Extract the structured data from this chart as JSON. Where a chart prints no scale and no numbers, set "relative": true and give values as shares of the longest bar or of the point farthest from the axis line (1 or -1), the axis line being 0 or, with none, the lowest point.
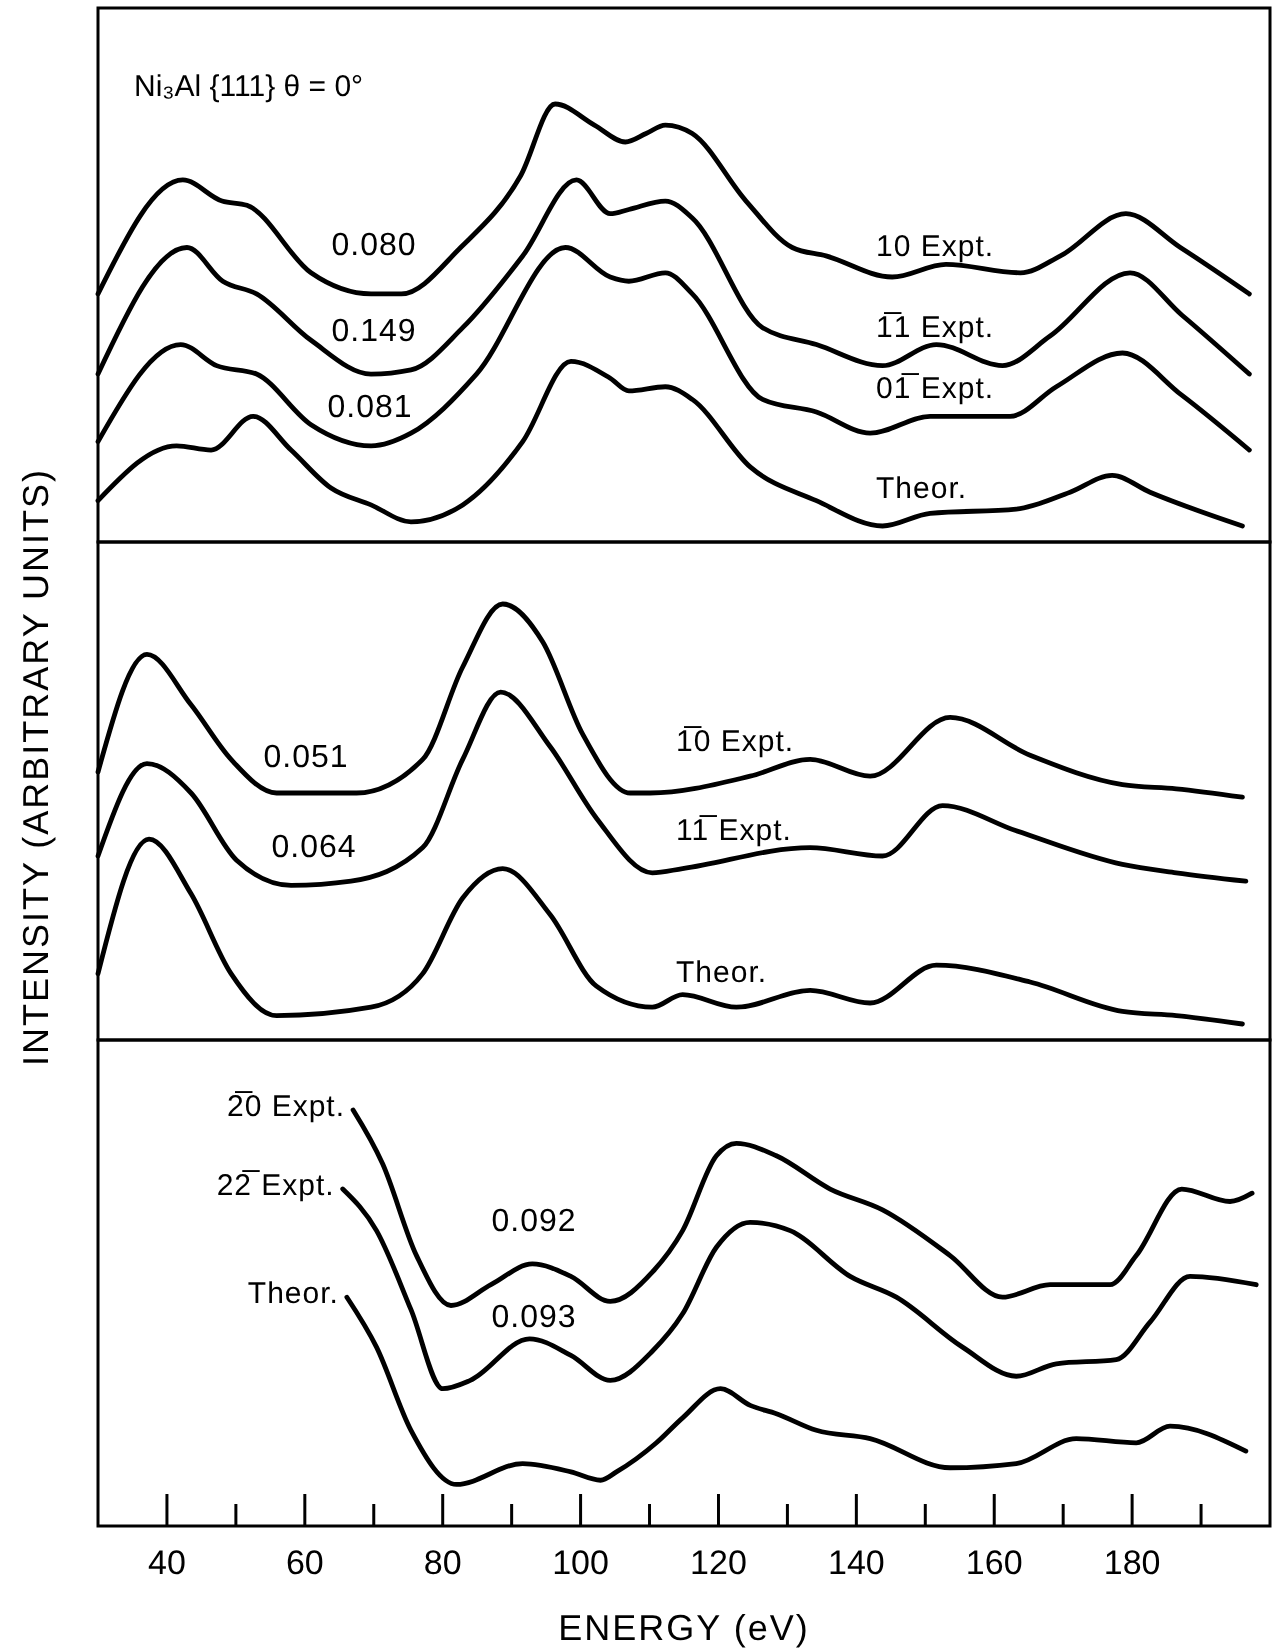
{
  "chart_data": [
    {
      "type": "line",
      "title": "Ni₃Al {111} θ = 0°",
      "relative": true,
      "xlim": [
        30,
        200
      ],
      "tick_labels": false,
      "annotations": [
        "0.080",
        "0.149",
        "0.081"
      ],
      "series": [
        {
          "name": "10 Expt.",
          "color": "#000000",
          "x": [
            30,
            42.3,
            48,
            51.6,
            60.9,
            69.6,
            74,
            82.6,
            91.3,
            96.3,
            102,
            106.5,
            109.5,
            112.3,
            116.2,
            124,
            130.7,
            135.6,
            145.2,
            153,
            163.8,
            169.6,
            179.1,
            187,
            197
          ],
          "values": [
            0.55,
            0.82,
            0.77,
            0.76,
            0.6,
            0.55,
            0.55,
            0.66,
            0.83,
            1.0,
            0.95,
            0.91,
            0.93,
            0.95,
            0.93,
            0.77,
            0.66,
            0.64,
            0.59,
            0.62,
            0.6,
            0.64,
            0.74,
            0.66,
            0.55
          ]
        },
        {
          "name": "1̅1 Expt.",
          "color": "#000000",
          "x": [
            30,
            42.9,
            48.1,
            53,
            60.9,
            69.6,
            75.4,
            82.9,
            91.6,
            99.4,
            104.3,
            107,
            112.3,
            116.2,
            126.4,
            134.2,
            143.8,
            151.6,
            161.2,
            168.1,
            179.7,
            187.2,
            197
          ],
          "values": [
            0.36,
            0.66,
            0.58,
            0.55,
            0.44,
            0.36,
            0.37,
            0.47,
            0.64,
            0.82,
            0.74,
            0.75,
            0.77,
            0.73,
            0.47,
            0.43,
            0.38,
            0.43,
            0.38,
            0.45,
            0.6,
            0.5,
            0.36
          ]
        },
        {
          "name": "01̅ Expt.",
          "color": "#000000",
          "x": [
            30,
            42,
            47.2,
            53,
            60.9,
            69.6,
            75.4,
            84.9,
            97.8,
            104.3,
            107,
            112.3,
            116.2,
            126.4,
            134.2,
            142,
            150.7,
            162.3,
            169,
            178.6,
            187.2,
            197
          ],
          "values": [
            0.2,
            0.43,
            0.38,
            0.36,
            0.24,
            0.19,
            0.22,
            0.36,
            0.66,
            0.59,
            0.58,
            0.6,
            0.55,
            0.3,
            0.27,
            0.22,
            0.26,
            0.26,
            0.33,
            0.41,
            0.31,
            0.18
          ]
        },
        {
          "name": "Theor.",
          "color": "#000000",
          "x": [
            30,
            41.4,
            46.4,
            52.5,
            58,
            63.8,
            69.6,
            75.4,
            82.9,
            91.6,
            98.6,
            104.3,
            107,
            112.3,
            116.2,
            124.6,
            134.2,
            143.8,
            150.7,
            163.2,
            171,
            177.1,
            182.6,
            196
          ],
          "values": [
            0.06,
            0.19,
            0.18,
            0.26,
            0.18,
            0.09,
            0.05,
            0.01,
            0.05,
            0.2,
            0.39,
            0.35,
            0.32,
            0.33,
            0.3,
            0.14,
            0.06,
            0,
            0.03,
            0.04,
            0.08,
            0.12,
            0.08,
            0.0
          ]
        }
      ]
    },
    {
      "type": "line",
      "ylabel": "INTENSITY (ARBITRARY UNITS)",
      "relative": true,
      "xlim": [
        30,
        200
      ],
      "tick_labels": false,
      "annotations": [
        "0.051",
        "0.064"
      ],
      "series": [
        {
          "name": "1̅0 Expt.",
          "color": "#000000",
          "x": [
            30,
            37.1,
            43.5,
            49.3,
            55.9,
            67.5,
            77.1,
            82.9,
            88.7,
            94.5,
            100.3,
            107.2,
            110.1,
            124.6,
            133.3,
            142,
            153.6,
            165.2,
            178.6,
            186.4,
            196
          ],
          "values": [
            0.6,
            0.88,
            0.76,
            0.63,
            0.55,
            0.55,
            0.63,
            0.85,
            1.0,
            0.91,
            0.69,
            0.55,
            0.55,
            0.59,
            0.63,
            0.59,
            0.73,
            0.64,
            0.57,
            0.56,
            0.54
          ]
        },
        {
          "name": "11̅ Expt.",
          "color": "#000000",
          "x": [
            30,
            37.1,
            43.5,
            50.1,
            58,
            66.7,
            77.1,
            82.9,
            88.4,
            95.6,
            102.3,
            110.4,
            114.8,
            133.3,
            143.8,
            152.5,
            163.2,
            178.6,
            186.4,
            196.5
          ],
          "values": [
            0.4,
            0.62,
            0.55,
            0.39,
            0.33,
            0.34,
            0.42,
            0.63,
            0.79,
            0.66,
            0.49,
            0.36,
            0.37,
            0.42,
            0.4,
            0.52,
            0.46,
            0.38,
            0.36,
            0.34
          ]
        },
        {
          "name": "Theor.",
          "color": "#000000",
          "x": [
            30,
            37.4,
            43.5,
            49.3,
            55.9,
            69.6,
            77.1,
            82.9,
            88.7,
            95.6,
            102.3,
            110.4,
            114.8,
            122.6,
            133.3,
            142,
            151.6,
            165.2,
            178.6,
            186.4,
            196
          ],
          "values": [
            0.12,
            0.44,
            0.31,
            0.12,
            0.02,
            0.04,
            0.12,
            0.3,
            0.37,
            0.26,
            0.09,
            0.04,
            0.07,
            0.04,
            0.08,
            0.05,
            0.14,
            0.1,
            0.03,
            0.02,
            0.0
          ]
        }
      ]
    },
    {
      "type": "line",
      "xlabel": "ENERGY (eV)",
      "relative": true,
      "xlim": [
        30,
        200
      ],
      "tick_labels": "x",
      "xticks": [
        40,
        {
          "value": 50,
          "label": null
        },
        60,
        {
          "value": 70,
          "label": null
        },
        80,
        {
          "value": 90,
          "label": null
        },
        100,
        {
          "value": 110,
          "label": null
        },
        120,
        {
          "value": 130,
          "label": null
        },
        140,
        {
          "value": 150,
          "label": null
        },
        160,
        {
          "value": 170,
          "label": null
        },
        180,
        {
          "value": 190,
          "label": null
        }
      ],
      "annotations": [
        "0.092",
        "0.093"
      ],
      "series": [
        {
          "name": "2̅0 Expt.",
          "color": "#000000",
          "x": [
            67,
            71.3,
            76.2,
            81.2,
            87,
            93,
            98.6,
            104.3,
            110.4,
            114.8,
            119.7,
            122.6,
            128.4,
            136.2,
            143.8,
            153.6,
            161.2,
            168.1,
            176.8,
            180.6,
            187.2,
            194.2,
            197.4
          ],
          "values": [
            1.0,
            0.87,
            0.65,
            0.53,
            0.58,
            0.63,
            0.6,
            0.54,
            0.61,
            0.71,
            0.89,
            0.92,
            0.89,
            0.81,
            0.76,
            0.65,
            0.55,
            0.58,
            0.58,
            0.65,
            0.81,
            0.78,
            0.8
          ]
        },
        {
          "name": "22̅ Expt.",
          "color": "#000000",
          "x": [
            65.5,
            70.4,
            75.4,
            80,
            84,
            92.6,
            98.6,
            104.3,
            110.4,
            114.8,
            119.7,
            124.6,
            130.4,
            139.1,
            145.8,
            155.4,
            163.2,
            169,
            177.7,
            182.6,
            188.4,
            198
          ],
          "values": [
            0.81,
            0.71,
            0.52,
            0.33,
            0.35,
            0.45,
            0.41,
            0.35,
            0.42,
            0.51,
            0.67,
            0.73,
            0.71,
            0.6,
            0.55,
            0.43,
            0.36,
            0.39,
            0.4,
            0.49,
            0.6,
            0.58
          ]
        },
        {
          "name": "Theor.",
          "color": "#000000",
          "x": [
            66.1,
            70.4,
            75.4,
            82,
            91.6,
            98.6,
            102.9,
            105.2,
            111,
            114.8,
            120.3,
            124.6,
            128.4,
            134.2,
            142,
            153.6,
            163.2,
            171.9,
            180.6,
            185.5,
            196.5
          ],
          "values": [
            0.55,
            0.43,
            0.23,
            0.1,
            0.15,
            0.13,
            0.11,
            0.13,
            0.2,
            0.26,
            0.33,
            0.29,
            0.27,
            0.23,
            0.21,
            0.14,
            0.15,
            0.21,
            0.2,
            0.24,
            0.18
          ]
        }
      ]
    }
  ]
}
